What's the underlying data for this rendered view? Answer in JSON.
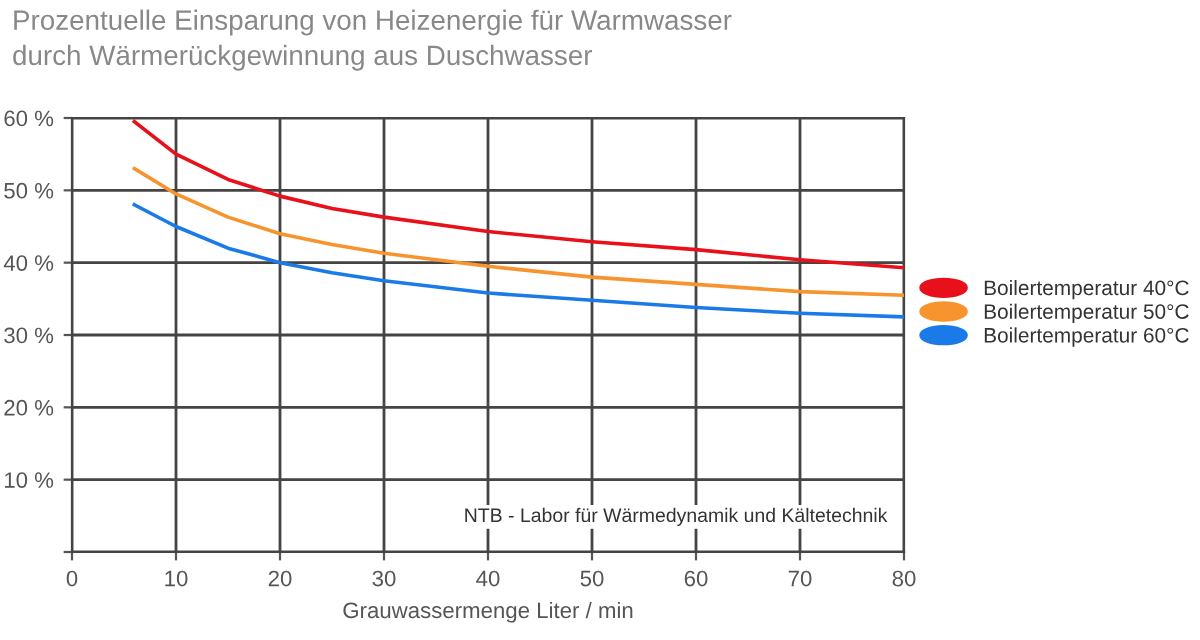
{
  "chart_data": {
    "type": "line",
    "title": "Prozentuelle Einsparung von Heizenergie für Warmwasser",
    "subtitle": "durch Wärmerückgewinnung aus Duschwasser",
    "xlabel": "Grauwassermenge Liter / min",
    "x": [
      6,
      10,
      15,
      20,
      25,
      30,
      40,
      50,
      60,
      70,
      80
    ],
    "series": [
      {
        "name": "Boilertemperatur 40°C",
        "color": "#e8101a",
        "values": [
          59.5,
          55,
          51.5,
          49.2,
          47.5,
          46.3,
          44.3,
          42.9,
          41.8,
          40.4,
          39.3
        ]
      },
      {
        "name": "Boilertemperatur 50°C",
        "color": "#f7942e",
        "values": [
          53,
          49.5,
          46.3,
          44,
          42.5,
          41.3,
          39.5,
          38,
          37,
          36,
          35.5
        ]
      },
      {
        "name": "Boilertemperatur 60°C",
        "color": "#1a7be8",
        "values": [
          48,
          45,
          42,
          40,
          38.6,
          37.5,
          35.8,
          34.8,
          33.8,
          33,
          32.5
        ]
      }
    ],
    "xlim": [
      0,
      80
    ],
    "xticks": [
      0,
      10,
      20,
      30,
      40,
      50,
      60,
      70,
      80
    ],
    "ylim": [
      0,
      60
    ],
    "yticks": [
      {
        "value": 0,
        "label": null
      },
      {
        "value": 10,
        "label": "10 %"
      },
      {
        "value": 20,
        "label": "20 %"
      },
      {
        "value": 30,
        "label": "30 %"
      },
      {
        "value": 40,
        "label": "40 %"
      },
      {
        "value": 50,
        "label": "50 %"
      },
      {
        "value": 60,
        "label": "60 %"
      }
    ],
    "annotations": [
      "NTB - Labor für Wärmedynamik und Kältetechnik"
    ],
    "grid": true,
    "legend": "right",
    "marker": "none",
    "line_style": "solid"
  }
}
